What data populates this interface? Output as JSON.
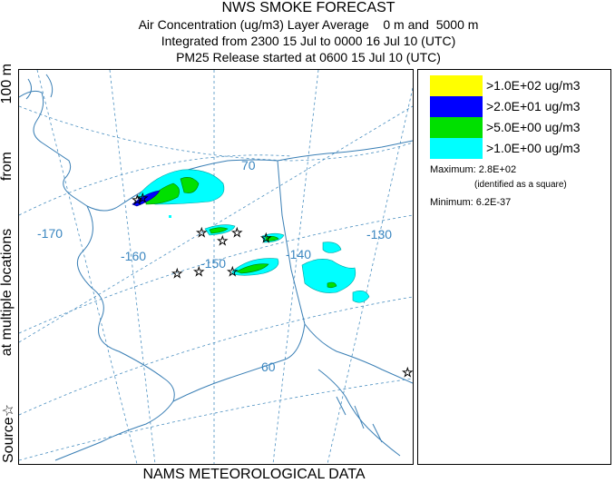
{
  "header": {
    "title": "NWS SMOKE FORECAST",
    "line2": "Air Concentration (ug/m3) Layer Average    0 m and  5000 m",
    "line3": "Integrated from 2300 15 Jul to 0000 16 Jul 10 (UTC)",
    "line4": "PM25 Release started at 0600 15 Jul 10 (UTC)"
  },
  "side_label": {
    "part1": "Source",
    "symbol": "☆",
    "part2": "at multiple locations",
    "part3": "from",
    "part4": "100 m"
  },
  "footer": {
    "label": "NAMS METEOROLOGICAL DATA"
  },
  "map": {
    "graticule_labels": {
      "lon_170": "-170",
      "lon_160": "-160",
      "lon_150": "-150",
      "lon_140": "-140",
      "lon_130": "-130",
      "lat_70": "70",
      "lat_60": "60"
    },
    "colors": {
      "graticule": "#4a8fc0",
      "coastline": "#3a7fb5",
      "label": "#3a86c0"
    }
  },
  "legend": {
    "entries": [
      {
        "label": ">1.0E+02 ug/m3",
        "color": "#ffff00"
      },
      {
        "label": ">2.0E+01 ug/m3",
        "color": "#0000ff"
      },
      {
        "label": ">5.0E+00 ug/m3",
        "color": "#00e000"
      },
      {
        "label": ">1.0E+00 ug/m3",
        "color": "#00ffff"
      }
    ],
    "maximum": "Maximum: 2.8E+02",
    "maximum_note": "(identified as a square)",
    "minimum": "Minimum: 6.2E-37"
  }
}
